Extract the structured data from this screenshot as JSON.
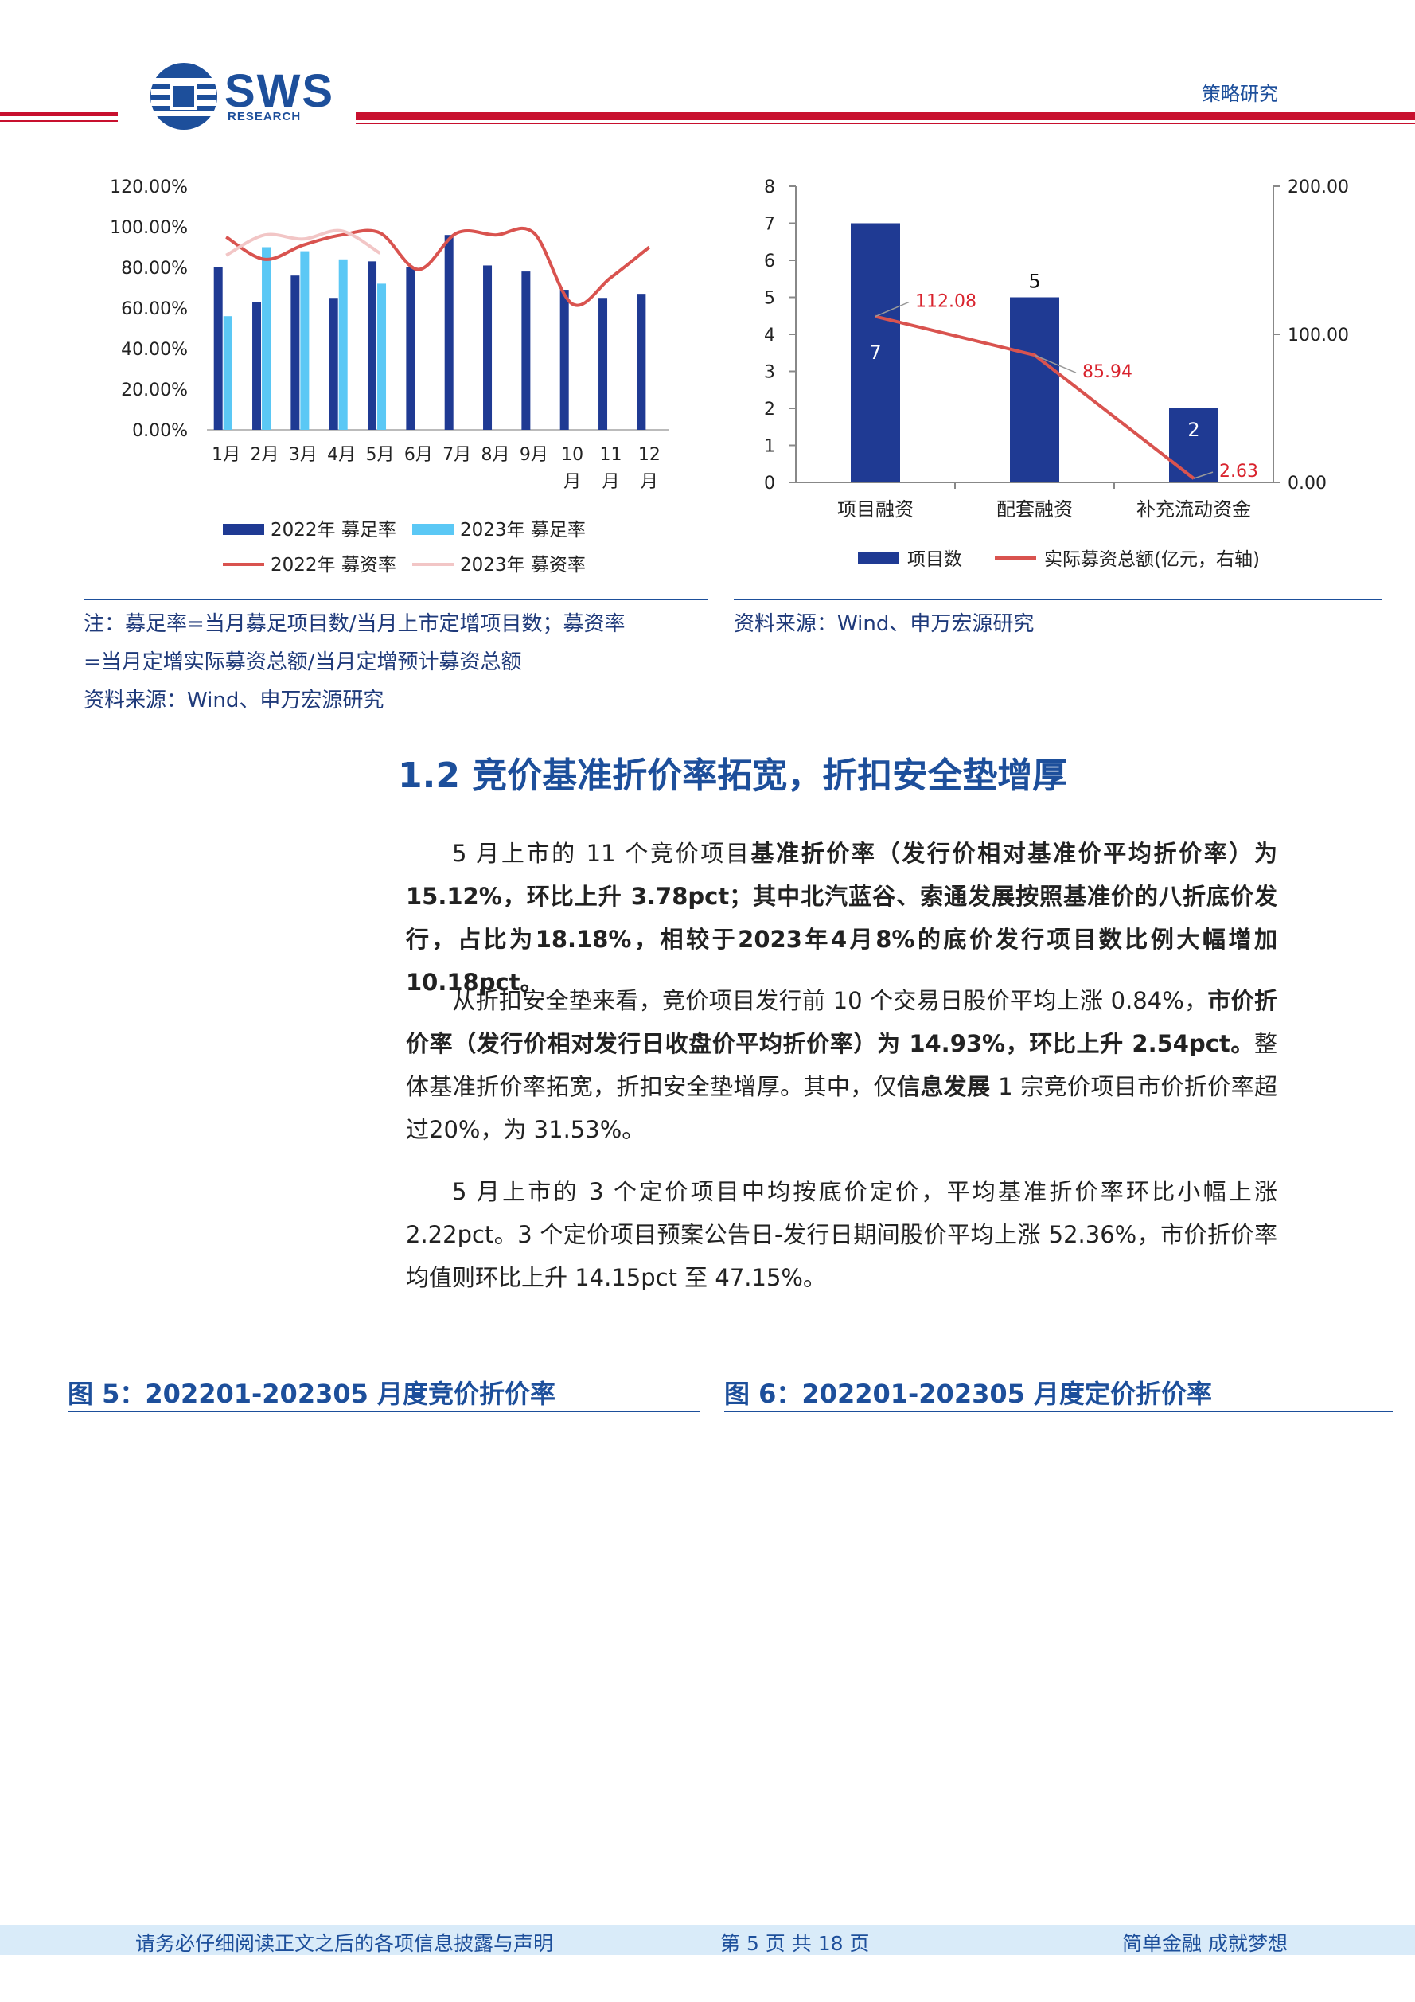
{
  "header": {
    "logo_text": "SWS",
    "logo_sub": "RESEARCH",
    "report_type": "策略研究"
  },
  "chart_data": [
    {
      "type": "bar",
      "categories": [
        "1月",
        "2月",
        "3月",
        "4月",
        "5月",
        "6月",
        "7月",
        "8月",
        "9月",
        "10月",
        "11月",
        "12月"
      ],
      "y_ticks": [
        "120.00%",
        "100.00%",
        "80.00%",
        "60.00%",
        "40.00%",
        "20.00%",
        "0.00%"
      ],
      "ylim": [
        0,
        120
      ],
      "series": [
        {
          "name": "2022年 募足率",
          "kind": "bar",
          "color": "#1f3a93",
          "values": [
            80,
            63,
            76,
            65,
            83,
            80,
            96,
            81,
            78,
            69,
            65,
            67
          ]
        },
        {
          "name": "2023年 募足率",
          "kind": "bar",
          "color": "#5bc8f5",
          "values": [
            56,
            90,
            88,
            84,
            72,
            null,
            null,
            null,
            null,
            null,
            null,
            null
          ]
        },
        {
          "name": "2022年 募资率",
          "kind": "line",
          "color": "#d9534f",
          "values": [
            95,
            84,
            91,
            96,
            97,
            79,
            97,
            96,
            97,
            62,
            75,
            90
          ]
        },
        {
          "name": "2023年 募资率",
          "kind": "line",
          "color": "#f2c6c6",
          "values": [
            86,
            96,
            94,
            98,
            87,
            null,
            null,
            null,
            null,
            null,
            null,
            null
          ]
        }
      ]
    },
    {
      "type": "bar",
      "categories": [
        "项目融资",
        "配套融资",
        "补充流动资金"
      ],
      "y_ticks": [
        "8",
        "7",
        "6",
        "5",
        "4",
        "3",
        "2",
        "1",
        "0"
      ],
      "ylim": [
        0,
        8
      ],
      "y2_ticks": [
        "200.00",
        "100.00",
        "0.00"
      ],
      "y2lim": [
        0,
        200
      ],
      "series": [
        {
          "name": "项目数",
          "kind": "bar",
          "color": "#1f3a93",
          "values": [
            7,
            5,
            2
          ],
          "labels": [
            "7",
            "5",
            "2"
          ]
        },
        {
          "name": "实际募资总额(亿元，右轴)",
          "kind": "line",
          "color": "#d9534f",
          "values": [
            112.08,
            85.94,
            2.63
          ],
          "labels": [
            "112.08",
            "85.94",
            "2.63"
          ]
        }
      ]
    }
  ],
  "notes": {
    "left_line1": "注：募足率=当月募足项目数/当月上市定增项目数；募资率",
    "left_line2": "=当月定增实际募资总额/当月定增预计募资总额",
    "left_line3": "资料来源：Wind、申万宏源研究",
    "right_line1": "资料来源：Wind、申万宏源研究"
  },
  "section": {
    "heading": "1.2 竞价基准折价率拓宽，折扣安全垫增厚"
  },
  "paragraphs": {
    "p1_a": "5 月上市的 11 个竞价项目",
    "p1_b": "基准折价率（发行价相对基准价平均折价率）为15.12%，环比上升 3.78pct；其中北汽蓝谷、索通发展按照基准价的八折底价发行，占比为18.18%，相较于2023年4月8%的底价发行项目数比例大幅增加10.18pct。",
    "p2_a": "从折扣安全垫来看，竞价项目发行前 10 个交易日股价平均上涨 0.84%，",
    "p2_b": "市价折价率（发行价相对发行日收盘价平均折价率）为 14.93%，环比上升 2.54pct。",
    "p2_c": "整体基准折价率拓宽，折扣安全垫增厚。其中，仅",
    "p2_d": "信息发展",
    "p2_e": " 1 宗竞价项目市价折价率超过20%，为 31.53%。",
    "p3": "5 月上市的 3 个定价项目中均按底价定价，平均基准折价率环比小幅上涨2.22pct。3 个定价项目预案公告日-发行日期间股价平均上涨 52.36%，市价折价率均值则环比上升 14.15pct 至 47.15%。"
  },
  "figures": {
    "fig5_title": "图 5：202201-202305 月度竞价折价率",
    "fig6_title": "图 6：202201-202305 月度定价折价率"
  },
  "footer": {
    "disclaimer": "请务必仔细阅读正文之后的各项信息披露与声明",
    "page": "第 5 页 共 18 页",
    "slogan": "简单金融 成就梦想"
  },
  "colors": {
    "brand": "#1d4f9b",
    "rule_red": "#c8102e",
    "bar_dark": "#1f3a93",
    "bar_light": "#5bc8f5",
    "line_red": "#d9534f",
    "line_pink": "#f2c6c6"
  }
}
